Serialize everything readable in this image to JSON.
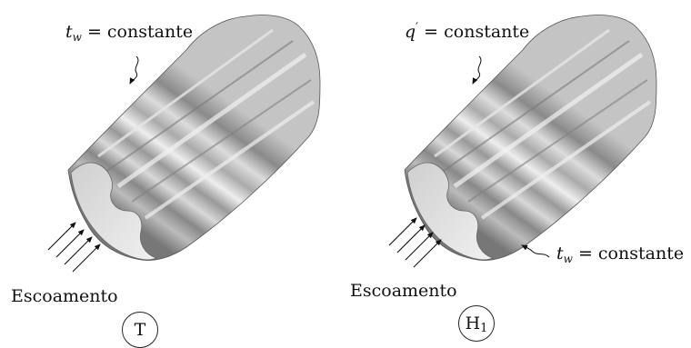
{
  "left_panel": {
    "condition": {
      "symbol": "t",
      "subscript": "w",
      "rest": " = constante"
    },
    "flow_label": "Escoamento",
    "case_label": "T"
  },
  "right_panel": {
    "condition_top": {
      "symbol": "q",
      "prime": "′",
      "rest": " = constante"
    },
    "condition_bottom": {
      "symbol": "t",
      "subscript": "w",
      "rest": " = constante"
    },
    "flow_label": "Escoamento",
    "case_label": {
      "main": "H",
      "subscript": "1"
    }
  },
  "colors": {
    "duct_light": "#ececec",
    "duct_mid": "#a9a9a9",
    "duct_dark": "#6e6e6e",
    "duct_face": "#dcdcdc",
    "ink": "#111111"
  },
  "icons": [
    "flow-arrow-icon",
    "leader-arrow-icon"
  ]
}
